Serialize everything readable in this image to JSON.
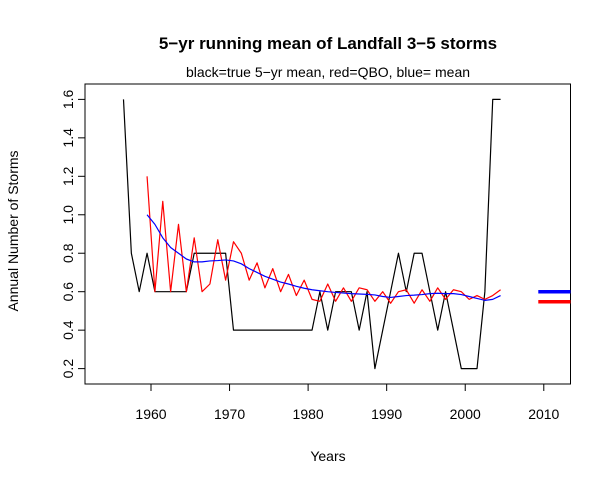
{
  "chart_data": {
    "type": "line",
    "title": "5−yr running mean of Landfall 3−5 storms",
    "subtitle": "black=true 5−yr mean, red=QBO, blue= mean",
    "xlabel": "Years",
    "ylabel": "Annual Number of Storms",
    "xlim": [
      1951.6,
      2013.4
    ],
    "ylim": [
      0.12,
      1.68
    ],
    "xticks": [
      1960,
      1970,
      1980,
      1990,
      2000,
      2010
    ],
    "yticks": [
      0.2,
      0.4,
      0.6,
      0.8,
      1.0,
      1.2,
      1.4,
      1.6
    ],
    "series": [
      {
        "color": "#000000",
        "x": [
          1956.5,
          1957.5,
          1958.5,
          1959.5,
          1960.5,
          1961.5,
          1962.5,
          1963.5,
          1964.5,
          1965.5,
          1966.5,
          1967.5,
          1968.5,
          1969.5,
          1970.5,
          1971.5,
          1972.5,
          1973.5,
          1974.5,
          1975.5,
          1976.5,
          1977.5,
          1978.5,
          1979.5,
          1980.5,
          1981.5,
          1982.5,
          1983.5,
          1984.5,
          1985.5,
          1986.5,
          1987.5,
          1988.5,
          1989.5,
          1990.5,
          1991.5,
          1992.5,
          1993.5,
          1994.5,
          1995.5,
          1996.5,
          1997.5,
          1998.5,
          1999.5,
          2000.5,
          2001.5,
          2002.5,
          2003.5,
          2004.5
        ],
        "y": [
          1.6,
          0.8,
          0.6,
          0.8,
          0.6,
          0.6,
          0.6,
          0.6,
          0.6,
          0.8,
          0.8,
          0.8,
          0.8,
          0.8,
          0.4,
          0.4,
          0.4,
          0.4,
          0.4,
          0.4,
          0.4,
          0.4,
          0.4,
          0.4,
          0.4,
          0.6,
          0.4,
          0.6,
          0.6,
          0.6,
          0.4,
          0.6,
          0.2,
          0.4,
          0.6,
          0.8,
          0.6,
          0.8,
          0.8,
          0.6,
          0.4,
          0.6,
          0.4,
          0.2,
          0.2,
          0.2,
          0.6,
          1.6,
          1.6
        ]
      },
      {
        "color": "#ff0000",
        "x": [
          1959.5,
          1960.5,
          1961.5,
          1962.5,
          1963.5,
          1964.5,
          1965.5,
          1966.5,
          1967.5,
          1968.5,
          1969.5,
          1970.5,
          1971.5,
          1972.5,
          1973.5,
          1974.5,
          1975.5,
          1976.5,
          1977.5,
          1978.5,
          1979.5,
          1980.5,
          1981.5,
          1982.5,
          1983.5,
          1984.5,
          1985.5,
          1986.5,
          1987.5,
          1988.5,
          1989.5,
          1990.5,
          1991.5,
          1992.5,
          1993.5,
          1994.5,
          1995.5,
          1996.5,
          1997.5,
          1998.5,
          1999.5,
          2000.5,
          2001.5,
          2002.5,
          2003.5,
          2004.5
        ],
        "y": [
          1.2,
          0.6,
          1.07,
          0.6,
          0.95,
          0.6,
          0.88,
          0.6,
          0.64,
          0.87,
          0.66,
          0.86,
          0.8,
          0.66,
          0.75,
          0.62,
          0.72,
          0.6,
          0.69,
          0.58,
          0.66,
          0.56,
          0.55,
          0.64,
          0.55,
          0.62,
          0.55,
          0.62,
          0.61,
          0.55,
          0.6,
          0.54,
          0.6,
          0.61,
          0.54,
          0.61,
          0.55,
          0.62,
          0.56,
          0.61,
          0.6,
          0.56,
          0.58,
          0.56,
          0.58,
          0.61
        ]
      },
      {
        "color": "#0000ff",
        "x": [
          1959.5,
          1960.5,
          1961.5,
          1962.5,
          1963.5,
          1964.5,
          1965.5,
          1966.5,
          1967.5,
          1968.5,
          1969.5,
          1970.5,
          1971.5,
          1972.5,
          1973.5,
          1974.5,
          1975.5,
          1976.5,
          1977.5,
          1978.5,
          1979.5,
          1980.5,
          1981.5,
          1982.5,
          1983.5,
          1984.5,
          1985.5,
          1986.5,
          1987.5,
          1988.5,
          1989.5,
          1990.5,
          1991.5,
          1992.5,
          1993.5,
          1994.5,
          1995.5,
          1996.5,
          1997.5,
          1998.5,
          1999.5,
          2000.5,
          2001.5,
          2002.5,
          2003.5,
          2004.5
        ],
        "y": [
          1.0,
          0.95,
          0.88,
          0.83,
          0.8,
          0.77,
          0.755,
          0.755,
          0.76,
          0.762,
          0.765,
          0.76,
          0.745,
          0.72,
          0.7,
          0.68,
          0.665,
          0.65,
          0.64,
          0.628,
          0.618,
          0.61,
          0.605,
          0.6,
          0.596,
          0.593,
          0.59,
          0.588,
          0.586,
          0.583,
          0.575,
          0.57,
          0.575,
          0.58,
          0.582,
          0.585,
          0.59,
          0.592,
          0.59,
          0.59,
          0.585,
          0.575,
          0.565,
          0.555,
          0.56,
          0.58
        ]
      }
    ],
    "reference_lines": [
      {
        "color": "#0000ff",
        "x": [
          2009.3,
          2013.4
        ],
        "y": 0.6
      },
      {
        "color": "#ff0000",
        "x": [
          2009.3,
          2013.4
        ],
        "y": 0.548
      }
    ]
  }
}
